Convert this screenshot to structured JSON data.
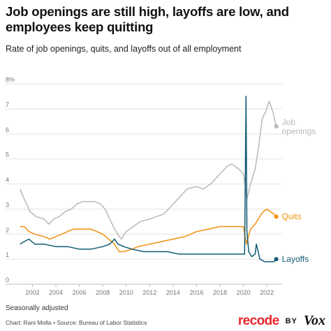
{
  "title": "Job openings are still high, layoffs are low, and employees keep quitting",
  "subtitle": "Rate of job openings, quits, and layoffs out of all employment",
  "note": "Seasonally adjusted",
  "credit": "Chart: Rani Molla • Source: Bureau of Labor Statistics",
  "brand": {
    "recode": "recode",
    "by": "BY",
    "vox": "Vox"
  },
  "colors": {
    "openings": "#b8b8b8",
    "quits": "#f0900c",
    "layoffs": "#0f5a72",
    "grid": "#e3e3e3"
  },
  "chart_data": {
    "type": "line",
    "ylim": [
      0,
      8
    ],
    "yticks": [
      "0",
      "1",
      "2",
      "3",
      "4",
      "5",
      "6",
      "7",
      "8%"
    ],
    "xlim": [
      2000.9,
      2023.3
    ],
    "xticks": [
      "2002",
      "2004",
      "2006",
      "2008",
      "2010",
      "2012",
      "2014",
      "2016",
      "2018",
      "2020",
      "2022"
    ],
    "grid": true,
    "series": [
      {
        "key": "openings",
        "name": "Job openings",
        "label_lines": [
          "Job",
          "openings"
        ],
        "points": [
          [
            2000.95,
            3.8
          ],
          [
            2001.2,
            3.5
          ],
          [
            2001.5,
            3.2
          ],
          [
            2001.8,
            2.9
          ],
          [
            2002.3,
            2.7
          ],
          [
            2003.0,
            2.6
          ],
          [
            2003.4,
            2.4
          ],
          [
            2003.8,
            2.6
          ],
          [
            2004.3,
            2.7
          ],
          [
            2004.8,
            2.9
          ],
          [
            2005.3,
            3.0
          ],
          [
            2005.8,
            3.2
          ],
          [
            2006.3,
            3.3
          ],
          [
            2006.8,
            3.3
          ],
          [
            2007.3,
            3.3
          ],
          [
            2007.8,
            3.2
          ],
          [
            2008.2,
            3.0
          ],
          [
            2008.6,
            2.6
          ],
          [
            2009.0,
            2.2
          ],
          [
            2009.4,
            1.9
          ],
          [
            2009.6,
            1.8
          ],
          [
            2010.0,
            2.1
          ],
          [
            2010.6,
            2.3
          ],
          [
            2011.2,
            2.5
          ],
          [
            2012.0,
            2.6
          ],
          [
            2012.6,
            2.7
          ],
          [
            2013.2,
            2.8
          ],
          [
            2014.0,
            3.2
          ],
          [
            2014.6,
            3.5
          ],
          [
            2015.2,
            3.8
          ],
          [
            2016.0,
            3.9
          ],
          [
            2016.6,
            3.8
          ],
          [
            2017.2,
            4.0
          ],
          [
            2018.0,
            4.4
          ],
          [
            2018.6,
            4.7
          ],
          [
            2019.0,
            4.8
          ],
          [
            2019.6,
            4.6
          ],
          [
            2020.0,
            4.4
          ],
          [
            2020.3,
            3.4
          ],
          [
            2020.6,
            4.0
          ],
          [
            2021.0,
            4.6
          ],
          [
            2021.3,
            5.5
          ],
          [
            2021.6,
            6.6
          ],
          [
            2021.9,
            6.9
          ],
          [
            2022.2,
            7.3
          ],
          [
            2022.5,
            6.9
          ],
          [
            2022.8,
            6.3
          ]
        ]
      },
      {
        "key": "quits",
        "name": "Quits",
        "label_lines": [
          "Quits"
        ],
        "points": [
          [
            2000.95,
            2.3
          ],
          [
            2001.3,
            2.3
          ],
          [
            2001.7,
            2.1
          ],
          [
            2002.2,
            2.0
          ],
          [
            2003.0,
            1.9
          ],
          [
            2003.5,
            1.8
          ],
          [
            2004.0,
            1.9
          ],
          [
            2004.5,
            2.0
          ],
          [
            2005.0,
            2.1
          ],
          [
            2005.5,
            2.2
          ],
          [
            2006.0,
            2.2
          ],
          [
            2006.5,
            2.2
          ],
          [
            2007.0,
            2.2
          ],
          [
            2007.5,
            2.1
          ],
          [
            2008.0,
            2.0
          ],
          [
            2008.5,
            1.8
          ],
          [
            2009.0,
            1.6
          ],
          [
            2009.4,
            1.3
          ],
          [
            2009.8,
            1.3
          ],
          [
            2010.5,
            1.4
          ],
          [
            2011.0,
            1.5
          ],
          [
            2012.0,
            1.6
          ],
          [
            2013.0,
            1.7
          ],
          [
            2014.0,
            1.8
          ],
          [
            2015.0,
            1.9
          ],
          [
            2016.0,
            2.1
          ],
          [
            2017.0,
            2.2
          ],
          [
            2018.0,
            2.3
          ],
          [
            2019.0,
            2.3
          ],
          [
            2020.0,
            2.3
          ],
          [
            2020.25,
            1.6
          ],
          [
            2020.6,
            2.2
          ],
          [
            2021.0,
            2.4
          ],
          [
            2021.4,
            2.7
          ],
          [
            2021.7,
            2.9
          ],
          [
            2022.0,
            3.0
          ],
          [
            2022.3,
            2.9
          ],
          [
            2022.6,
            2.8
          ],
          [
            2022.8,
            2.7
          ]
        ]
      },
      {
        "key": "layoffs",
        "name": "Layoffs",
        "label_lines": [
          "Layoffs"
        ],
        "points": [
          [
            2000.95,
            1.6
          ],
          [
            2001.3,
            1.7
          ],
          [
            2001.7,
            1.8
          ],
          [
            2002.2,
            1.6
          ],
          [
            2003.0,
            1.6
          ],
          [
            2004.0,
            1.5
          ],
          [
            2005.0,
            1.5
          ],
          [
            2006.0,
            1.4
          ],
          [
            2007.0,
            1.4
          ],
          [
            2008.0,
            1.5
          ],
          [
            2008.6,
            1.6
          ],
          [
            2009.0,
            1.8
          ],
          [
            2009.3,
            1.6
          ],
          [
            2009.8,
            1.5
          ],
          [
            2010.5,
            1.4
          ],
          [
            2011.5,
            1.3
          ],
          [
            2012.5,
            1.3
          ],
          [
            2013.5,
            1.3
          ],
          [
            2014.5,
            1.2
          ],
          [
            2015.5,
            1.2
          ],
          [
            2016.5,
            1.2
          ],
          [
            2017.5,
            1.2
          ],
          [
            2018.5,
            1.2
          ],
          [
            2019.5,
            1.2
          ],
          [
            2020.1,
            1.2
          ],
          [
            2020.22,
            7.5
          ],
          [
            2020.3,
            2.1
          ],
          [
            2020.45,
            1.3
          ],
          [
            2020.7,
            1.1
          ],
          [
            2021.0,
            1.2
          ],
          [
            2021.1,
            1.6
          ],
          [
            2021.4,
            1.0
          ],
          [
            2021.8,
            0.9
          ],
          [
            2022.2,
            0.9
          ],
          [
            2022.6,
            0.9
          ],
          [
            2022.8,
            1.0
          ]
        ]
      }
    ]
  }
}
